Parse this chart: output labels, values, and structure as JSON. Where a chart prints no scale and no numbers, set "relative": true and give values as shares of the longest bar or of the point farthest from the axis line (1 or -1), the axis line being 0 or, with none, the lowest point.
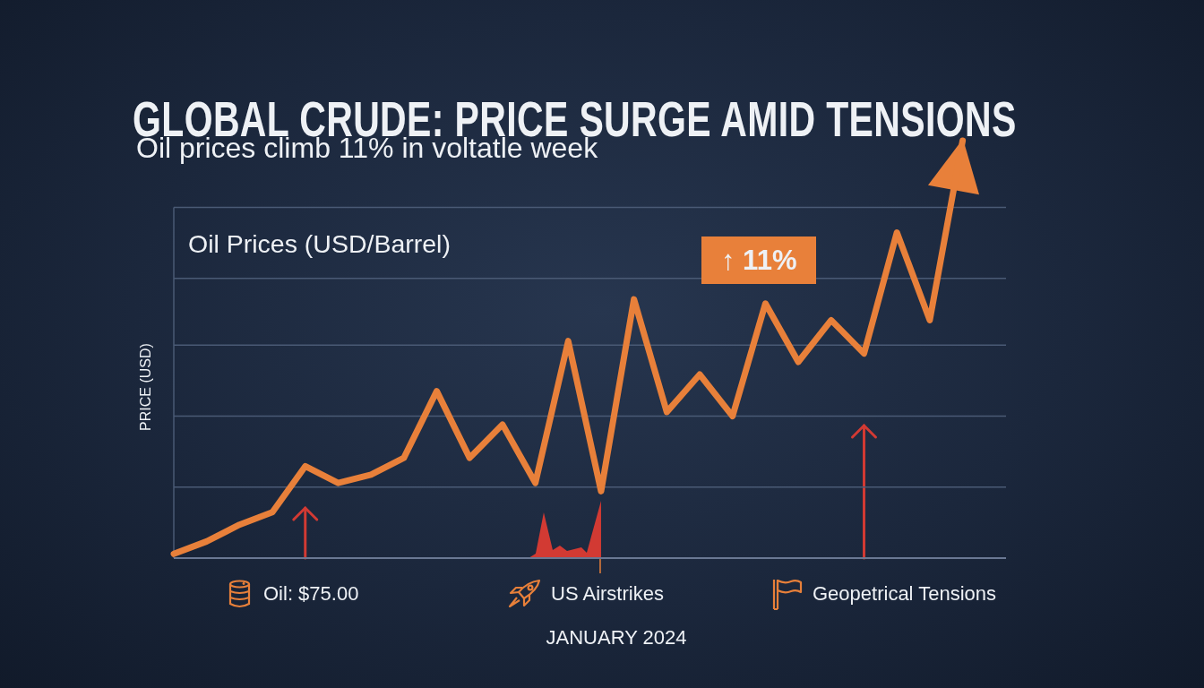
{
  "chart_data": {
    "type": "line",
    "title": "GLOBAL CRUDE: PRICE SURGE AMID TENSIONS",
    "subtitle": "Oil prices climb 11% in voltatle week",
    "xlabel": "JANUARY 2024",
    "ylabel": "PRICE (USD)",
    "annotations": [
      "Oil Prices (USD/Barrel)",
      "↑ 11%",
      "Oil: $75.00",
      "US Airstrikes",
      "Geopetrical Tensions"
    ],
    "categories": [
      null,
      null,
      null,
      null,
      null,
      null,
      null,
      null,
      null,
      null,
      null,
      null,
      null,
      null,
      null,
      null,
      null,
      null,
      null,
      null,
      null,
      null,
      null,
      null,
      null
    ],
    "series": [
      {
        "color": "#e8803a",
        "values": [
          0.01,
          0.04,
          0.08,
          0.11,
          0.22,
          0.18,
          0.2,
          0.24,
          0.4,
          0.24,
          0.32,
          0.18,
          0.52,
          0.16,
          0.62,
          0.35,
          0.44,
          0.34,
          0.61,
          0.47,
          0.57,
          0.49,
          0.78,
          0.57,
          1
        ]
      }
    ],
    "relative": true,
    "ref_lines": [
      {
        "axis": "y",
        "value": 0.17,
        "color": "#4a5a75"
      },
      {
        "axis": "y",
        "value": 0.34,
        "color": "#4a5a75"
      },
      {
        "axis": "y",
        "value": 0.51,
        "color": "#4a5a75"
      },
      {
        "axis": "y",
        "value": 0.67,
        "color": "#4a5a75"
      },
      {
        "axis": "y",
        "value": 0.84,
        "color": "#4a5a75"
      }
    ],
    "line_style": "solid"
  }
}
